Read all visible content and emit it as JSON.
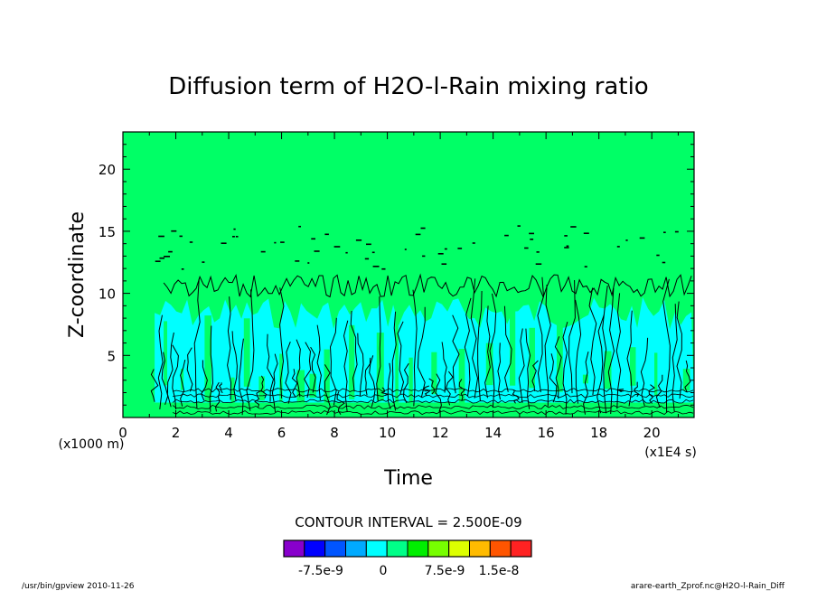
{
  "chart_data": {
    "type": "contour",
    "title": "Diffusion term of H2O-l-Rain mixing ratio",
    "xlabel": "Time",
    "ylabel": "Z-coordinate",
    "x_unit": "(x1E4 s)",
    "y_unit": "(x1000 m)",
    "xlim": [
      0,
      21.6
    ],
    "ylim": [
      0,
      23
    ],
    "x_ticks": [
      "0",
      "2",
      "4",
      "6",
      "8",
      "10",
      "12",
      "14",
      "16",
      "18",
      "20"
    ],
    "x_tick_values": [
      0,
      2,
      4,
      6,
      8,
      10,
      12,
      14,
      16,
      18,
      20
    ],
    "y_ticks": [
      "5",
      "10",
      "15",
      "20"
    ],
    "y_tick_values": [
      5,
      10,
      15,
      20
    ],
    "contour_interval": "CONTOUR INTERVAL = 2.500E-09",
    "background_color": "#00ff66",
    "active_band_color": "#00ffff",
    "active_region": {
      "x_start": 1.2,
      "top_z": 11.5,
      "bottom_z": 0.2
    },
    "colorbar": {
      "colors": [
        "#8800cc",
        "#0000ff",
        "#0055ff",
        "#00aaff",
        "#00ffff",
        "#00ff88",
        "#00ee00",
        "#77ff00",
        "#ddff00",
        "#ffbb00",
        "#ff5500",
        "#ff2222"
      ],
      "labels": [
        "-7.5e-9",
        "0",
        "7.5e-9",
        "1.5e-8"
      ]
    }
  },
  "footer": {
    "left": "/usr/bin/gpview  2010-11-26",
    "right": "arare-earth_Zprof.nc@H2O-l-Rain_Diff"
  }
}
